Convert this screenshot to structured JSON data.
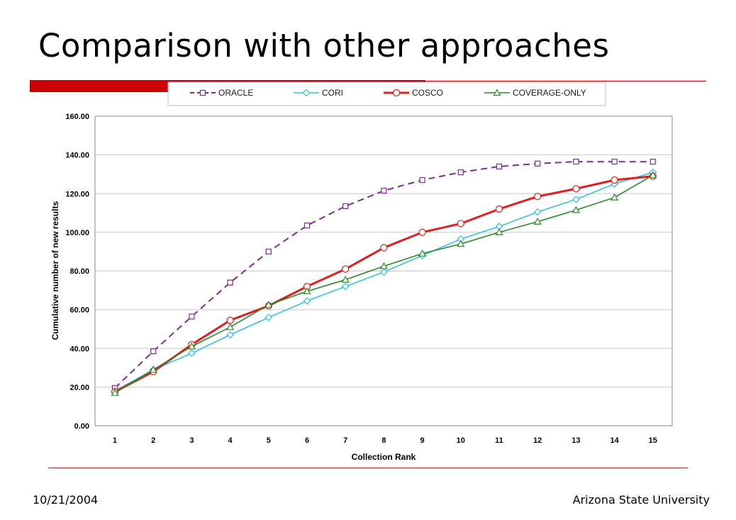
{
  "slide": {
    "title": "Comparison with other approaches",
    "footer_date": "10/21/2004",
    "footer_org": "Arizona State University"
  },
  "chart_data": {
    "type": "line",
    "title": "",
    "xlabel": "Collection Rank",
    "ylabel": "Cumulative number of new results",
    "x": [
      1,
      2,
      3,
      4,
      5,
      6,
      7,
      8,
      9,
      10,
      11,
      12,
      13,
      14,
      15
    ],
    "ylim": [
      0,
      160
    ],
    "yticks": [
      "0.00",
      "20.00",
      "40.00",
      "60.00",
      "80.00",
      "100.00",
      "120.00",
      "140.00",
      "160.00"
    ],
    "grid": "horizontal",
    "legend": "top",
    "series": [
      {
        "name": "ORACLE",
        "color": "#7b2c8e",
        "marker": "square",
        "dash": true,
        "values": [
          19.5,
          38.5,
          56.5,
          74,
          90,
          103.5,
          113.5,
          121.5,
          127,
          131,
          134,
          135.5,
          136.5,
          136.5,
          136.5
        ]
      },
      {
        "name": "CORI",
        "color": "#33c3e0",
        "marker": "diamond",
        "dash": false,
        "values": [
          18,
          29,
          37.5,
          47,
          56,
          64.5,
          72,
          79.5,
          88,
          96.5,
          103,
          110.5,
          117,
          125,
          131
        ]
      },
      {
        "name": "COSCO",
        "color": "#e02020",
        "marker": "circle",
        "dash": false,
        "values": [
          17.5,
          28,
          42,
          54.5,
          62,
          72,
          81,
          92,
          100,
          104.5,
          112,
          118.5,
          122.5,
          127,
          129
        ]
      },
      {
        "name": "COVERAGE-ONLY",
        "color": "#2a8a2a",
        "marker": "triangle",
        "dash": false,
        "values": [
          17,
          29,
          41,
          51,
          62.5,
          69.5,
          75.5,
          82.5,
          89,
          94,
          100,
          105.5,
          111.5,
          118,
          129.5
        ]
      }
    ]
  }
}
